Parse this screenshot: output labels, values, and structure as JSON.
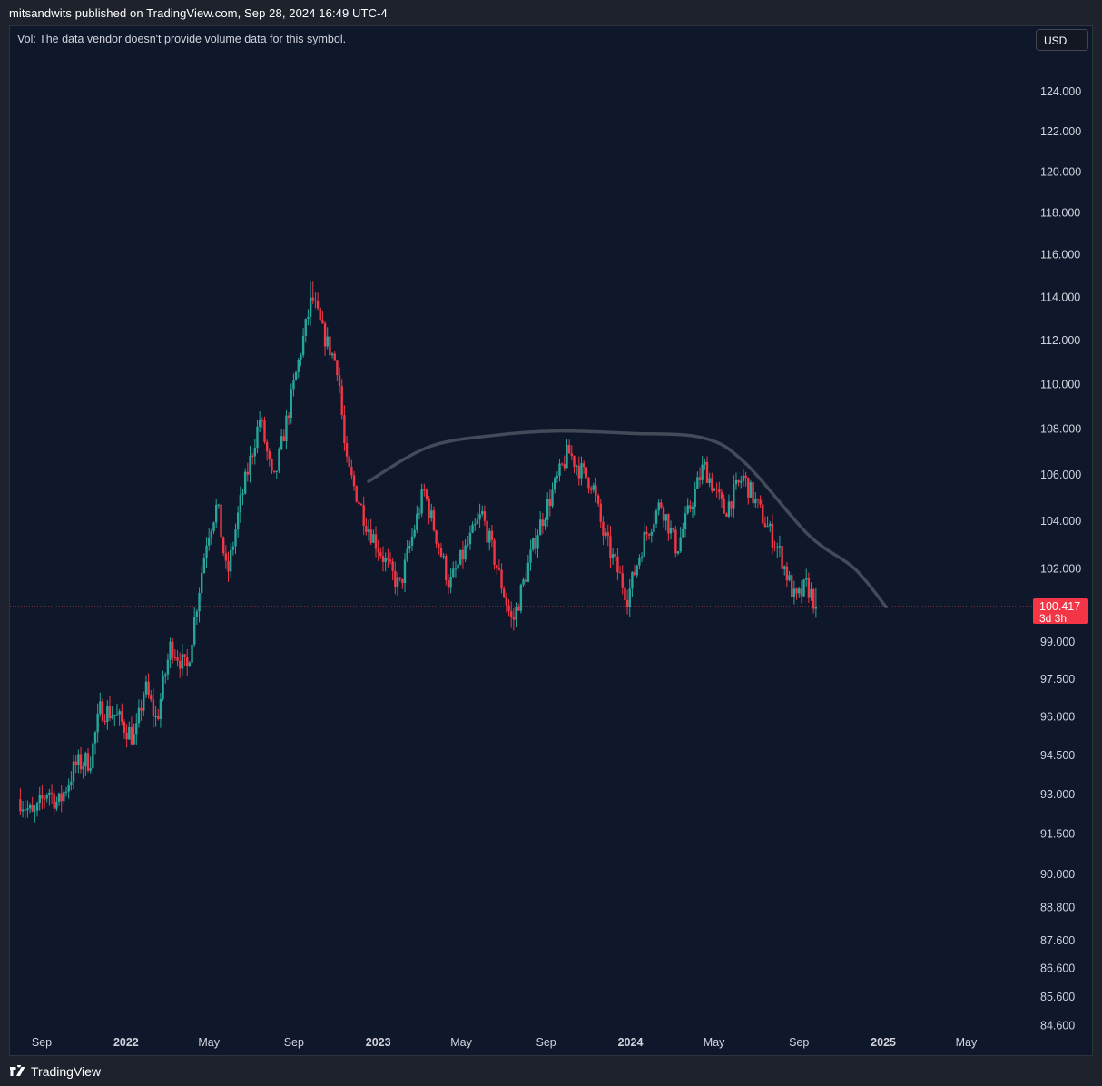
{
  "header": {
    "published": "mitsandwits published on TradingView.com, Sep 28, 2024 16:49 UTC-4"
  },
  "notice": {
    "text": "Vol: The data vendor doesn't provide volume data for this symbol."
  },
  "currency": {
    "label": "USD"
  },
  "footer": {
    "brand": "TradingView"
  },
  "colors": {
    "up": "#26a69a",
    "down": "#f23645",
    "background": "#0f172b",
    "curve": "#434a59",
    "label_bg": "#f23645"
  },
  "chart_data": {
    "type": "candlestick",
    "title": "",
    "xlabel": "",
    "ylabel": "USD",
    "scale": "log",
    "ylim": [
      84.0,
      126.0
    ],
    "x_ticks": [
      {
        "label": "Sep",
        "date": "2021-09"
      },
      {
        "label": "2022",
        "date": "2022-01",
        "bold": true
      },
      {
        "label": "May",
        "date": "2022-05"
      },
      {
        "label": "Sep",
        "date": "2022-09"
      },
      {
        "label": "2023",
        "date": "2023-01",
        "bold": true
      },
      {
        "label": "May",
        "date": "2023-05"
      },
      {
        "label": "Sep",
        "date": "2023-09"
      },
      {
        "label": "2024",
        "date": "2024-01",
        "bold": true
      },
      {
        "label": "May",
        "date": "2024-05"
      },
      {
        "label": "Sep",
        "date": "2024-09"
      },
      {
        "label": "2025",
        "date": "2025-01",
        "bold": true
      },
      {
        "label": "May",
        "date": "2025-05"
      }
    ],
    "y_ticks": [
      "124.000",
      "122.000",
      "120.000",
      "118.000",
      "116.000",
      "114.000",
      "112.000",
      "110.000",
      "108.000",
      "106.000",
      "104.000",
      "102.000",
      "99.000",
      "97.500",
      "96.000",
      "94.500",
      "93.000",
      "91.500",
      "90.000",
      "88.800",
      "87.600",
      "86.600",
      "85.600",
      "84.600"
    ],
    "y_tick_values": [
      124,
      122,
      120,
      118,
      116,
      114,
      112,
      110,
      108,
      106,
      104,
      102,
      99,
      97.5,
      96,
      94.5,
      93,
      91.5,
      90,
      88.8,
      87.6,
      86.6,
      85.6,
      84.6
    ],
    "price_anchors": [
      {
        "date": "2021-08-01",
        "value": 92.8
      },
      {
        "date": "2021-08-20",
        "value": 92.1
      },
      {
        "date": "2021-09-10",
        "value": 93.2
      },
      {
        "date": "2021-09-25",
        "value": 92.6
      },
      {
        "date": "2021-10-20",
        "value": 94.1
      },
      {
        "date": "2021-11-10",
        "value": 94.3
      },
      {
        "date": "2021-11-25",
        "value": 96.3
      },
      {
        "date": "2021-12-15",
        "value": 96.1
      },
      {
        "date": "2022-01-14",
        "value": 95.1
      },
      {
        "date": "2022-01-28",
        "value": 97.2
      },
      {
        "date": "2022-02-14",
        "value": 95.8
      },
      {
        "date": "2022-03-07",
        "value": 98.9
      },
      {
        "date": "2022-03-30",
        "value": 97.8
      },
      {
        "date": "2022-04-28",
        "value": 103.3
      },
      {
        "date": "2022-05-13",
        "value": 104.7
      },
      {
        "date": "2022-05-27",
        "value": 101.6
      },
      {
        "date": "2022-06-15",
        "value": 104.7
      },
      {
        "date": "2022-07-14",
        "value": 108.5
      },
      {
        "date": "2022-08-02",
        "value": 105.5
      },
      {
        "date": "2022-08-25",
        "value": 108.9
      },
      {
        "date": "2022-09-27",
        "value": 114.0
      },
      {
        "date": "2022-10-13",
        "value": 112.3
      },
      {
        "date": "2022-11-04",
        "value": 110.7
      },
      {
        "date": "2022-11-15",
        "value": 106.5
      },
      {
        "date": "2022-12-15",
        "value": 103.9
      },
      {
        "date": "2023-01-18",
        "value": 101.9
      },
      {
        "date": "2023-02-01",
        "value": 101.2
      },
      {
        "date": "2023-03-08",
        "value": 105.3
      },
      {
        "date": "2023-04-14",
        "value": 101.3
      },
      {
        "date": "2023-05-31",
        "value": 104.3
      },
      {
        "date": "2023-07-14",
        "value": 99.7
      },
      {
        "date": "2023-08-20",
        "value": 103.6
      },
      {
        "date": "2023-10-03",
        "value": 107.0
      },
      {
        "date": "2023-10-20",
        "value": 106.2
      },
      {
        "date": "2023-11-07",
        "value": 105.6
      },
      {
        "date": "2023-11-22",
        "value": 103.5
      },
      {
        "date": "2023-12-28",
        "value": 100.8
      },
      {
        "date": "2024-01-20",
        "value": 103.2
      },
      {
        "date": "2024-02-14",
        "value": 104.8
      },
      {
        "date": "2024-03-08",
        "value": 102.8
      },
      {
        "date": "2024-04-16",
        "value": 106.4
      },
      {
        "date": "2024-05-16",
        "value": 104.4
      },
      {
        "date": "2024-06-12",
        "value": 105.9
      },
      {
        "date": "2024-07-18",
        "value": 103.7
      },
      {
        "date": "2024-08-05",
        "value": 102.6
      },
      {
        "date": "2024-08-27",
        "value": 100.6
      },
      {
        "date": "2024-09-12",
        "value": 101.3
      },
      {
        "date": "2024-09-27",
        "value": 100.4
      }
    ],
    "dome_curve": [
      {
        "date": "2022-12-18",
        "value": 105.7
      },
      {
        "date": "2023-03-15",
        "value": 107.2
      },
      {
        "date": "2023-06-15",
        "value": 107.7
      },
      {
        "date": "2023-09-15",
        "value": 107.9
      },
      {
        "date": "2024-01-01",
        "value": 107.8
      },
      {
        "date": "2024-04-15",
        "value": 107.6
      },
      {
        "date": "2024-06-15",
        "value": 106.5
      },
      {
        "date": "2024-09-15",
        "value": 103.4
      },
      {
        "date": "2024-11-20",
        "value": 102.0
      },
      {
        "date": "2025-01-05",
        "value": 100.4
      }
    ],
    "last_price": {
      "value": 100.417,
      "label": "100.417",
      "countdown": "3d 3h"
    }
  }
}
